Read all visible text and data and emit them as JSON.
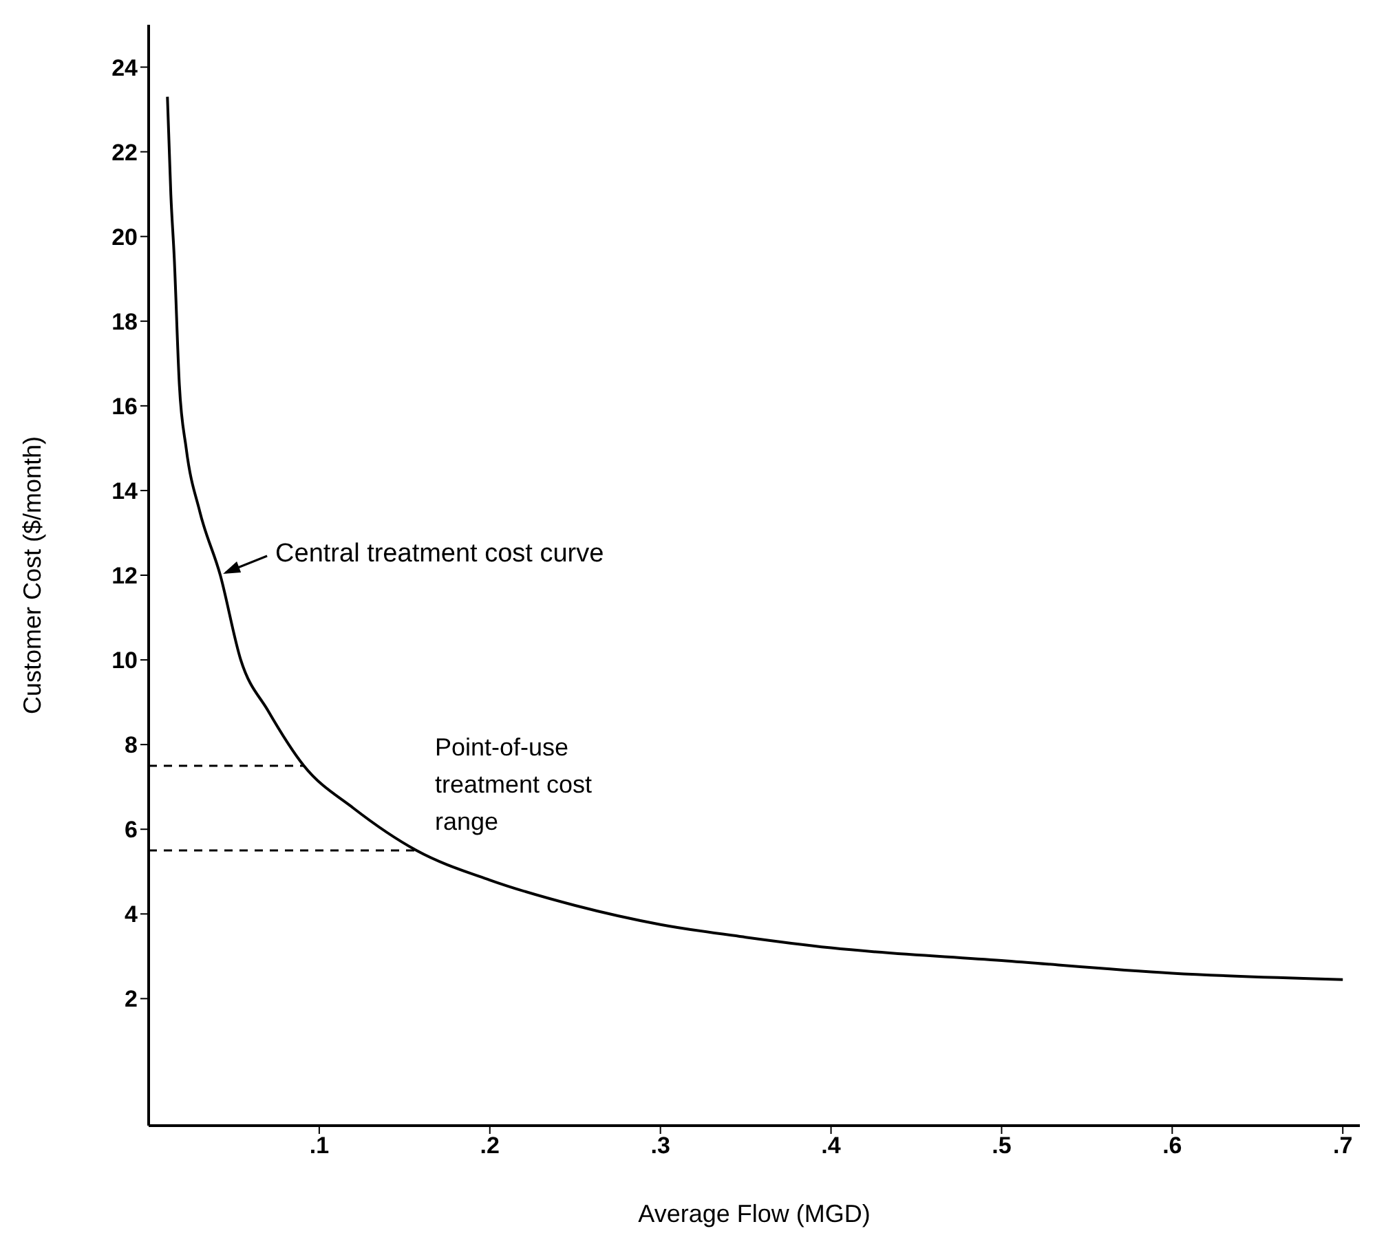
{
  "chart_data": {
    "type": "line",
    "xlabel": "Average Flow (MGD)",
    "ylabel": "Customer Cost ($/month)",
    "xlim": [
      0,
      0.71
    ],
    "xticks": [
      {
        "value": 0.1,
        "label": ".1"
      },
      {
        "value": 0.2,
        "label": ".2"
      },
      {
        "value": 0.3,
        "label": ".3"
      },
      {
        "value": 0.4,
        "label": ".4"
      },
      {
        "value": 0.5,
        "label": ".5"
      },
      {
        "value": 0.6,
        "label": ".6"
      },
      {
        "value": 0.7,
        "label": ".7"
      }
    ],
    "ylim": [
      -1,
      25
    ],
    "yticks": [
      2,
      4,
      6,
      8,
      10,
      12,
      14,
      16,
      18,
      20,
      22,
      24
    ],
    "marker": "none",
    "series": [
      {
        "color": "#000000",
        "line_style": "solid",
        "x": [
          0.011,
          0.013,
          0.015,
          0.018,
          0.022,
          0.03,
          0.042,
          0.054,
          0.07,
          0.091,
          0.12,
          0.157,
          0.2,
          0.25,
          0.3,
          0.35,
          0.4,
          0.5,
          0.6,
          0.7
        ],
        "values": [
          23.3,
          21,
          19.5,
          16.5,
          15,
          13.5,
          12,
          10,
          8.8,
          7.5,
          6.5,
          5.5,
          4.8,
          4.2,
          3.75,
          3.45,
          3.2,
          2.9,
          2.6,
          2.45
        ]
      },
      {
        "color": "#000000",
        "line_style": "dashed",
        "x": [
          0,
          0.091
        ],
        "values": [
          7.5,
          7.5
        ]
      },
      {
        "color": "#000000",
        "line_style": "dashed",
        "x": [
          0,
          0.157
        ],
        "values": [
          5.5,
          5.5
        ]
      }
    ],
    "annotations": [
      {
        "text": "Central treatment cost curve",
        "x": 0.042,
        "y": 12
      },
      "Point-of-use treatment cost range"
    ]
  }
}
